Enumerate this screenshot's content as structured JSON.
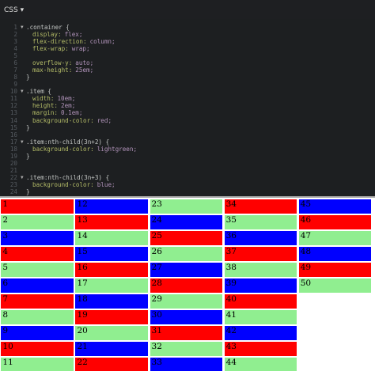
{
  "header": {
    "tab": "CSS ▾"
  },
  "editor": {
    "lines": [
      {
        "n": 1,
        "sel": ".container {"
      },
      {
        "n": 2,
        "prop": "display:",
        "val": "flex;"
      },
      {
        "n": 3,
        "prop": "flex-direction:",
        "val": "column;"
      },
      {
        "n": 4,
        "prop": "flex-wrap:",
        "val": "wrap;"
      },
      {
        "n": 5
      },
      {
        "n": 6,
        "prop": "overflow-y:",
        "val": "auto;"
      },
      {
        "n": 7,
        "prop": "max-height:",
        "val": "25em;"
      },
      {
        "n": 8,
        "sel": "}"
      },
      {
        "n": 9
      },
      {
        "n": 10,
        "sel": ".item {"
      },
      {
        "n": 11,
        "prop": "width:",
        "val": "10em;"
      },
      {
        "n": 12,
        "prop": "height:",
        "val": "2em;"
      },
      {
        "n": 13,
        "prop": "margin:",
        "val": "0.1em;"
      },
      {
        "n": 14,
        "prop": "background-color:",
        "val": "red;"
      },
      {
        "n": 15,
        "sel": "}"
      },
      {
        "n": 16
      },
      {
        "n": 17,
        "sel": ".item:nth-child(3n+2) {"
      },
      {
        "n": 18,
        "prop": "background-color:",
        "val": "lightgreen;"
      },
      {
        "n": 19,
        "sel": "}"
      },
      {
        "n": 20
      },
      {
        "n": 21
      },
      {
        "n": 22,
        "sel": ".item:nth-child(3n+3) {"
      },
      {
        "n": 23,
        "prop": "background-color:",
        "val": "blue;"
      },
      {
        "n": 24,
        "sel": "}"
      }
    ]
  },
  "items": [
    "1",
    "2",
    "3",
    "4",
    "5",
    "6",
    "7",
    "8",
    "9",
    "10",
    "11",
    "12",
    "13",
    "14",
    "15",
    "16",
    "17",
    "18",
    "19",
    "20",
    "21",
    "22",
    "23",
    "24",
    "25",
    "26",
    "27",
    "28",
    "29",
    "30",
    "31",
    "32",
    "33",
    "34",
    "35",
    "36",
    "37",
    "38",
    "39",
    "40",
    "41",
    "42",
    "43",
    "44",
    "45",
    "46",
    "47",
    "48",
    "49",
    "50"
  ]
}
